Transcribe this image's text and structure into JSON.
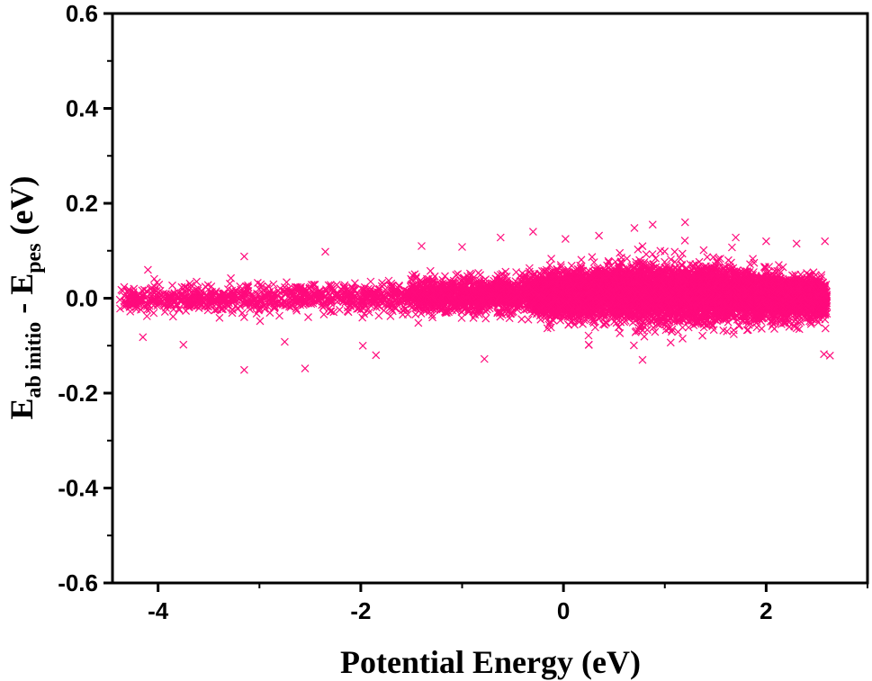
{
  "chart_data": {
    "type": "scatter",
    "xlabel": "Potential Energy (eV)",
    "ylabel": {
      "main": "E",
      "sub1": "ab initio",
      "mid": " - E",
      "sub2": "pes",
      "unit": " (eV)"
    },
    "xlim": [
      -4.45,
      3.0
    ],
    "ylim": [
      -0.6,
      0.6
    ],
    "x_ticks": [
      -4,
      -2,
      0,
      2
    ],
    "x_tick_labels": [
      "-4",
      "-2",
      "0",
      "2"
    ],
    "y_ticks": [
      -0.6,
      -0.4,
      -0.2,
      0.0,
      0.2,
      0.4,
      0.6
    ],
    "y_tick_labels": [
      "-0.6",
      "-0.4",
      "-0.2",
      "0.0",
      "0.2",
      "0.4",
      "0.6"
    ],
    "marker": "x",
    "color": "#ff0a7c",
    "grid": false,
    "legend": false,
    "x_range": [
      -4.38,
      2.6
    ],
    "residual_std_by_x": [
      {
        "x": -4.4,
        "std": 0.012
      },
      {
        "x": -3.0,
        "std": 0.014
      },
      {
        "x": -1.5,
        "std": 0.016
      },
      {
        "x": -0.5,
        "std": 0.02
      },
      {
        "x": 0.3,
        "std": 0.026
      },
      {
        "x": 0.9,
        "std": 0.03
      },
      {
        "x": 1.5,
        "std": 0.028
      },
      {
        "x": 2.2,
        "std": 0.022
      },
      {
        "x": 2.6,
        "std": 0.018
      }
    ],
    "residual_mean_by_x": [
      {
        "x": -4.4,
        "mean": -0.003
      },
      {
        "x": -2.0,
        "mean": 0.002
      },
      {
        "x": 0.0,
        "mean": 0.008
      },
      {
        "x": 0.9,
        "mean": 0.012
      },
      {
        "x": 2.6,
        "mean": 0.0
      }
    ],
    "outliers": [
      {
        "x": -3.15,
        "y": -0.151
      },
      {
        "x": -2.55,
        "y": -0.148
      },
      {
        "x": -4.15,
        "y": -0.082
      },
      {
        "x": -3.75,
        "y": -0.098
      },
      {
        "x": -2.75,
        "y": -0.092
      },
      {
        "x": -1.85,
        "y": -0.12
      },
      {
        "x": -1.98,
        "y": -0.1
      },
      {
        "x": -0.78,
        "y": -0.128
      },
      {
        "x": 0.25,
        "y": -0.098
      },
      {
        "x": 0.78,
        "y": -0.13
      },
      {
        "x": 2.57,
        "y": -0.118
      },
      {
        "x": 2.63,
        "y": -0.121
      },
      {
        "x": -4.1,
        "y": 0.06
      },
      {
        "x": -3.15,
        "y": 0.088
      },
      {
        "x": -2.35,
        "y": 0.098
      },
      {
        "x": -1.4,
        "y": 0.11
      },
      {
        "x": -1.0,
        "y": 0.108
      },
      {
        "x": -0.62,
        "y": 0.128
      },
      {
        "x": -0.3,
        "y": 0.14
      },
      {
        "x": 0.02,
        "y": 0.125
      },
      {
        "x": 0.35,
        "y": 0.132
      },
      {
        "x": 0.7,
        "y": 0.148
      },
      {
        "x": 0.88,
        "y": 0.155
      },
      {
        "x": 1.2,
        "y": 0.16
      },
      {
        "x": 1.7,
        "y": 0.128
      },
      {
        "x": 2.0,
        "y": 0.12
      },
      {
        "x": 2.3,
        "y": 0.115
      },
      {
        "x": 2.58,
        "y": 0.12
      }
    ]
  }
}
